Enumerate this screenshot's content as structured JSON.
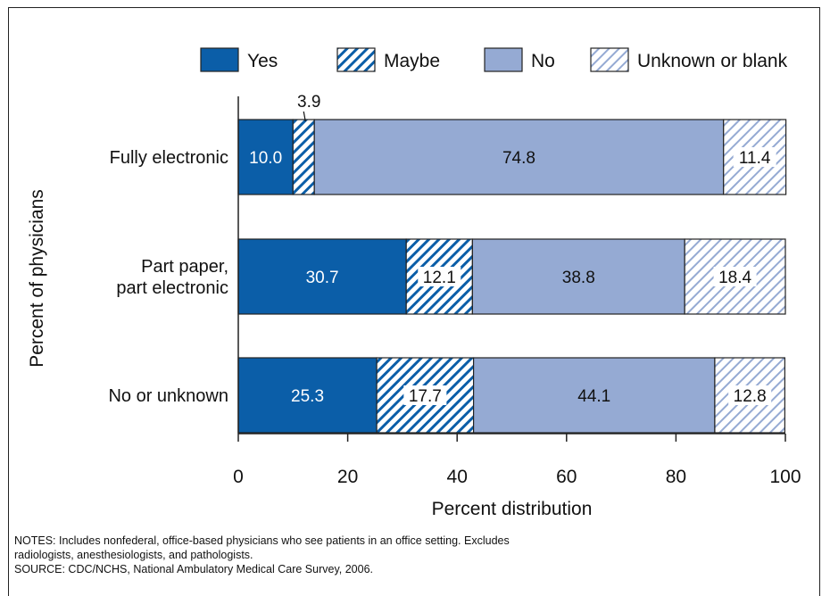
{
  "chart_data": {
    "type": "bar",
    "stacked": true,
    "orientation": "horizontal",
    "categories": [
      [
        "Fully electronic"
      ],
      [
        "Part paper,",
        "part electronic"
      ],
      [
        "No or unknown"
      ]
    ],
    "series": [
      {
        "name": "Yes",
        "values": [
          10.0,
          30.7,
          25.3
        ],
        "color": "#0b5ea8",
        "pattern": "solid"
      },
      {
        "name": "Maybe",
        "values": [
          3.9,
          12.1,
          17.7
        ],
        "color": "#0b5ea8",
        "pattern": "hatch"
      },
      {
        "name": "No",
        "values": [
          74.8,
          38.8,
          44.1
        ],
        "color": "#95aad3",
        "pattern": "solid"
      },
      {
        "name": "Unknown or blank",
        "values": [
          11.4,
          18.4,
          12.8
        ],
        "color": "#95aad3",
        "pattern": "hatch"
      }
    ],
    "data_labels": [
      [
        "10.0",
        "3.9",
        "74.8",
        "11.4"
      ],
      [
        "30.7",
        "12.1",
        "38.8",
        "18.4"
      ],
      [
        "25.3",
        "17.7",
        "44.1",
        "12.8"
      ]
    ],
    "xlabel": "Percent distribution",
    "ylabel": "Percent of physicians",
    "xlim": [
      0,
      100
    ],
    "xticks": [
      "0",
      "20",
      "40",
      "60",
      "80",
      "100"
    ],
    "legend_position": "top"
  },
  "notes": {
    "line1": "NOTES: Includes nonfederal, office-based physicians who see patients in an office setting.  Excludes",
    "line2": "radiologists, anesthesiologists, and pathologists.",
    "source": "SOURCE: CDC/NCHS, National Ambulatory Medical Care Survey, 2006."
  }
}
